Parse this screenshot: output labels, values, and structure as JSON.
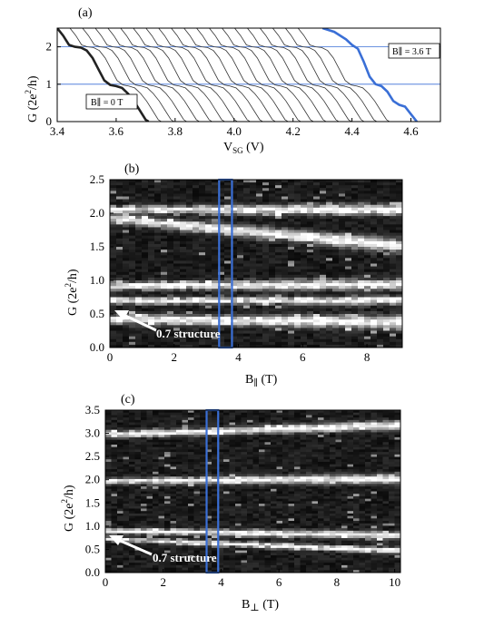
{
  "chart_data": [
    {
      "panel": "(a)",
      "type": "line",
      "xlabel": "V",
      "xlabel_sub": "SG",
      "xlabel_unit": " (V)",
      "ylabel": "G (2e",
      "ylabel_sup": "2",
      "ylabel_end": "/h)",
      "xlim": [
        3.4,
        4.7
      ],
      "ylim": [
        0,
        2.5
      ],
      "x_ticks": [
        "3.4",
        "3.6",
        "3.8",
        "4.0",
        "4.2",
        "4.4",
        "4.6"
      ],
      "y_ticks": [
        "0",
        "1",
        "2"
      ],
      "reference_lines": [
        1,
        2
      ],
      "offset_step_V": 0.043,
      "trace_count": 21,
      "first_trace_field": "B∥ = 0 T",
      "last_trace_field": "B∥ = 3.6 T",
      "annotations": [
        "B∥ = 0 T",
        "B∥ = 3.6 T"
      ],
      "highlight_color": "#3a6fd6",
      "first_trace_points": [
        [
          3.4,
          2.5
        ],
        [
          3.42,
          2.3
        ],
        [
          3.44,
          2.05
        ],
        [
          3.46,
          2.0
        ],
        [
          3.48,
          1.98
        ],
        [
          3.5,
          1.9
        ],
        [
          3.52,
          1.7
        ],
        [
          3.54,
          1.4
        ],
        [
          3.56,
          1.1
        ],
        [
          3.58,
          0.98
        ],
        [
          3.6,
          0.95
        ],
        [
          3.62,
          0.9
        ],
        [
          3.64,
          0.75
        ],
        [
          3.66,
          0.55
        ],
        [
          3.68,
          0.3
        ],
        [
          3.7,
          0.05
        ],
        [
          3.71,
          0.0
        ]
      ],
      "last_trace_points": [
        [
          4.3,
          2.5
        ],
        [
          4.34,
          2.4
        ],
        [
          4.38,
          2.2
        ],
        [
          4.4,
          2.05
        ],
        [
          4.42,
          1.95
        ],
        [
          4.44,
          1.6
        ],
        [
          4.46,
          1.2
        ],
        [
          4.48,
          1.0
        ],
        [
          4.5,
          0.95
        ],
        [
          4.52,
          0.8
        ],
        [
          4.54,
          0.55
        ],
        [
          4.56,
          0.45
        ],
        [
          4.58,
          0.4
        ],
        [
          4.6,
          0.2
        ],
        [
          4.62,
          0.0
        ]
      ]
    },
    {
      "panel": "(b)",
      "type": "heatmap",
      "xlabel": "B",
      "xlabel_unit": " (T)",
      "ylabel": "G (2e",
      "ylabel_sup": "2",
      "ylabel_end": "/h)",
      "xlim": [
        0,
        9.1
      ],
      "ylim": [
        0,
        2.5
      ],
      "x_ticks": [
        "0",
        "2",
        "4",
        "6",
        "8"
      ],
      "y_ticks": [
        "0.0",
        "0.5",
        "1.0",
        "1.5",
        "2.0",
        "2.5"
      ],
      "highlight_x_range": [
        3.4,
        3.8
      ],
      "annotation": "0.7 structure",
      "bands": [
        {
          "start": 0.42,
          "slope": -0.005,
          "width": 0.06
        },
        {
          "start": 0.7,
          "slope": 0.0,
          "width": 0.04
        },
        {
          "start": 0.92,
          "slope": 0.002,
          "width": 0.05
        },
        {
          "start": 1.92,
          "slope": -0.045,
          "width": 0.06
        },
        {
          "start": 2.05,
          "slope": 0.0,
          "width": 0.05
        }
      ]
    },
    {
      "panel": "(c)",
      "type": "heatmap",
      "xlabel": "B",
      "xlabel_unit": " (T)",
      "ylabel": "G (2e",
      "ylabel_sup": "2",
      "ylabel_end": "/h)",
      "xlim": [
        0,
        10.2
      ],
      "ylim": [
        0,
        3.5
      ],
      "x_ticks": [
        "0",
        "2",
        "4",
        "6",
        "8",
        "10"
      ],
      "y_ticks": [
        "0.0",
        "0.5",
        "1.0",
        "1.5",
        "2.0",
        "2.5",
        "3.0",
        "3.5"
      ],
      "highlight_x_range": [
        3.5,
        3.9
      ],
      "annotation": "0.7 structure",
      "bands": [
        {
          "start": 0.72,
          "slope": -0.025,
          "width": 0.04
        },
        {
          "start": 0.9,
          "slope": -0.01,
          "width": 0.05
        },
        {
          "start": 1.97,
          "slope": 0.005,
          "width": 0.06
        },
        {
          "start": 2.97,
          "slope": 0.02,
          "width": 0.06
        }
      ]
    }
  ]
}
